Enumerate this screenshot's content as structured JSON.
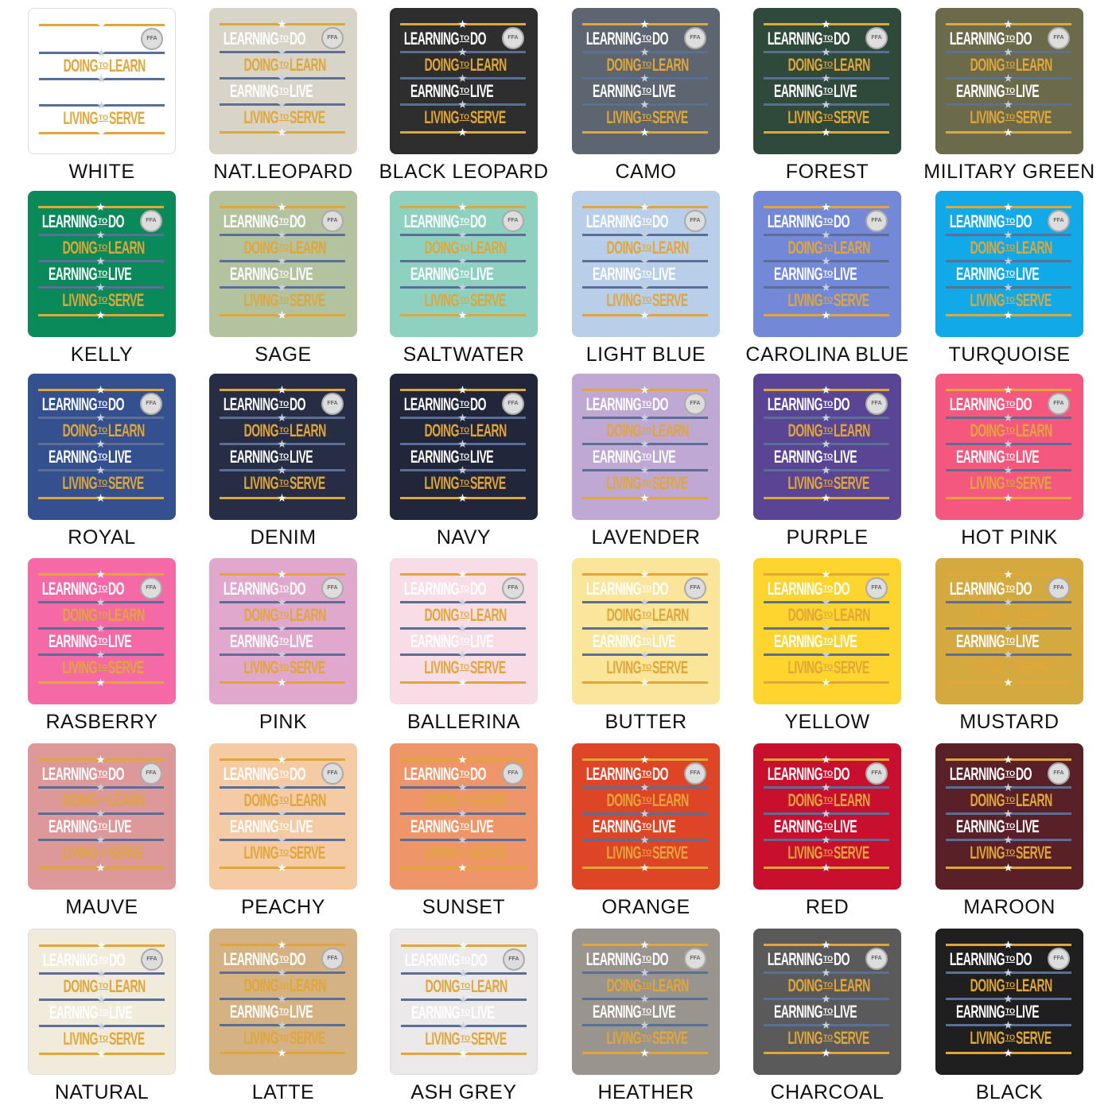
{
  "design": {
    "lines": [
      {
        "left": "LEARNING",
        "to": "TO",
        "right": "DO"
      },
      {
        "left": "DOING",
        "to": "TO",
        "right": "LEARN"
      },
      {
        "left": "EARNING",
        "to": "TO",
        "right": "LIVE"
      },
      {
        "left": "LIVING",
        "to": "TO",
        "right": "SERVE"
      }
    ],
    "emblem_text": "FFA",
    "gold": "#e0a63a",
    "white": "#ffffff",
    "blue_rule": "#5a6e96"
  },
  "swatches": [
    {
      "name": "WHITE",
      "color": "#ffffff"
    },
    {
      "name": "NAT.LEOPARD",
      "color": "#d9d4c8"
    },
    {
      "name": "BLACK LEOPARD",
      "color": "#2e2e2e"
    },
    {
      "name": "CAMO",
      "color": "#5d6570"
    },
    {
      "name": "FOREST",
      "color": "#2f4a3a"
    },
    {
      "name": "MILITARY GREEN",
      "color": "#6b6a4a"
    },
    {
      "name": "KELLY",
      "color": "#0a8a5a"
    },
    {
      "name": "SAGE",
      "color": "#b3c3a0"
    },
    {
      "name": "SALTWATER",
      "color": "#8fd1c0"
    },
    {
      "name": "LIGHT BLUE",
      "color": "#b9cfe9"
    },
    {
      "name": "CAROLINA BLUE",
      "color": "#7389d8"
    },
    {
      "name": "TURQUOISE",
      "color": "#12a9e8"
    },
    {
      "name": "ROYAL",
      "color": "#35508f"
    },
    {
      "name": "DENIM",
      "color": "#262d45"
    },
    {
      "name": "NAVY",
      "color": "#22263a"
    },
    {
      "name": "LAVENDER",
      "color": "#c0a8d4"
    },
    {
      "name": "PURPLE",
      "color": "#5a4594"
    },
    {
      "name": "HOT PINK",
      "color": "#f5587f"
    },
    {
      "name": "RASBERRY",
      "color": "#f56aa6"
    },
    {
      "name": "PINK",
      "color": "#e0a8cc"
    },
    {
      "name": "BALLERINA",
      "color": "#f8dde6"
    },
    {
      "name": "BUTTER",
      "color": "#fbe59a"
    },
    {
      "name": "YELLOW",
      "color": "#fdd52e"
    },
    {
      "name": "MUSTARD",
      "color": "#d4a93f"
    },
    {
      "name": "MAUVE",
      "color": "#dd989a"
    },
    {
      "name": "PEACHY",
      "color": "#f5cba6"
    },
    {
      "name": "SUNSET",
      "color": "#ee956a"
    },
    {
      "name": "ORANGE",
      "color": "#de4527"
    },
    {
      "name": "RED",
      "color": "#c8102e"
    },
    {
      "name": "MAROON",
      "color": "#5a2028"
    },
    {
      "name": "NATURAL",
      "color": "#f1ebdb"
    },
    {
      "name": "LATTE",
      "color": "#d4b283"
    },
    {
      "name": "ASH GREY",
      "color": "#ebe9e9"
    },
    {
      "name": "HEATHER",
      "color": "#9a948f"
    },
    {
      "name": "CHARCOAL",
      "color": "#5a5a5a"
    },
    {
      "name": "BLACK",
      "color": "#1f1f1f"
    }
  ]
}
